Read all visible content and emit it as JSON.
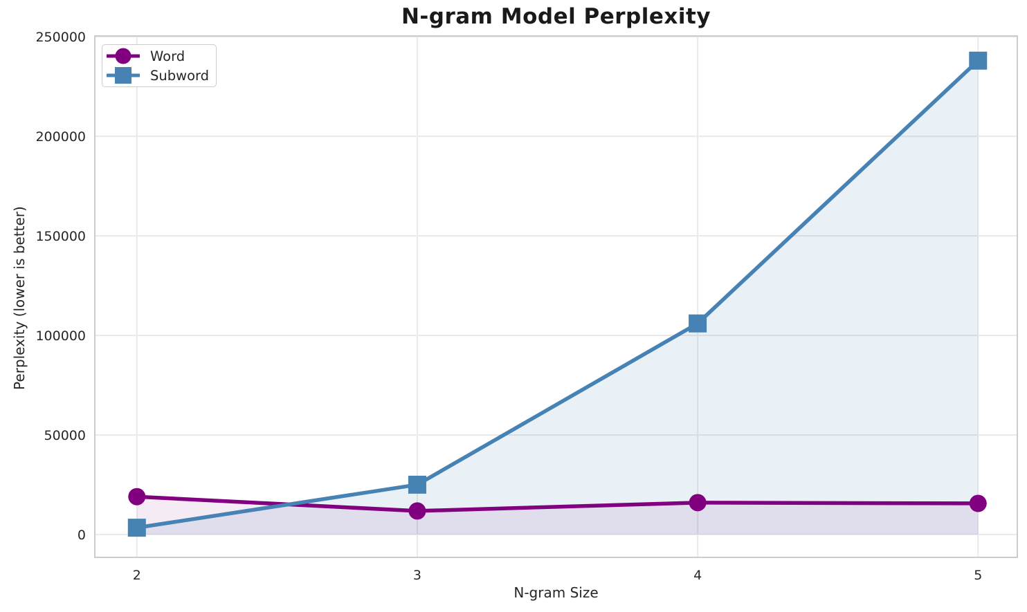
{
  "chart_data": {
    "type": "line",
    "title": "N-gram Model Perplexity",
    "xlabel": "N-gram Size",
    "ylabel": "Perplexity (lower is better)",
    "x": [
      2,
      3,
      4,
      5
    ],
    "series": [
      {
        "name": "Word",
        "color": "#800080",
        "marker": "circle",
        "fill_alpha": 0.08,
        "values": [
          19000,
          11800,
          16000,
          15600
        ]
      },
      {
        "name": "Subword",
        "color": "#4682B4",
        "marker": "square",
        "fill_alpha": 0.12,
        "values": [
          3400,
          25000,
          106000,
          238000
        ]
      }
    ],
    "xticks": [
      2,
      3,
      4,
      5
    ],
    "yticks": [
      0,
      50000,
      100000,
      150000,
      200000,
      250000
    ],
    "xlim": [
      1.85,
      5.14
    ],
    "ylim": [
      -11500,
      250400
    ],
    "grid": true,
    "legend_position": "upper left",
    "area_fill": true
  }
}
